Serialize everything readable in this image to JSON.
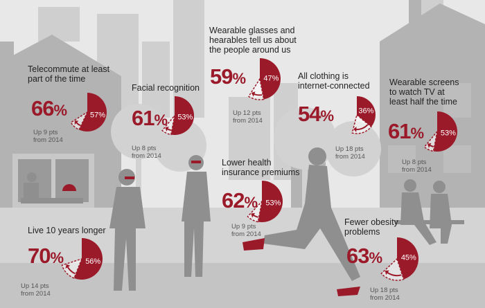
{
  "colors": {
    "accent": "#9b1a2a",
    "text": "#222222",
    "silhouette": "#8f8f8f",
    "background": "#e6e6e6"
  },
  "chart_data": [
    {
      "type": "pie",
      "title": "Telecommute at least part of the time",
      "big_percent": "66",
      "inner_percent": "57%",
      "change": "Up 9 pts",
      "since": "from 2014",
      "previous": 57,
      "current": 66
    },
    {
      "type": "pie",
      "title": "Facial recognition",
      "big_percent": "61",
      "inner_percent": "53%",
      "change": "Up 8 pts",
      "since": "from 2014",
      "previous": 53,
      "current": 61
    },
    {
      "type": "pie",
      "title": "Wearable glasses and hearables tell us about the people around us",
      "big_percent": "59",
      "inner_percent": "47%",
      "change": "Up 12 pts",
      "since": "from 2014",
      "previous": 47,
      "current": 59
    },
    {
      "type": "pie",
      "title": "All clothing is internet-connected",
      "big_percent": "54",
      "inner_percent": "36%",
      "change": "Up 18 pts",
      "since": "from 2014",
      "previous": 36,
      "current": 54
    },
    {
      "type": "pie",
      "title": "Wearable screens to watch TV at least half the time",
      "big_percent": "61",
      "inner_percent": "53%",
      "change": "Up 8 pts",
      "since": "from 2014",
      "previous": 53,
      "current": 61
    },
    {
      "type": "pie",
      "title": "Lower health insurance premiums",
      "big_percent": "62",
      "inner_percent": "53%",
      "change": "Up 9 pts",
      "since": "from 2014",
      "previous": 53,
      "current": 62
    },
    {
      "type": "pie",
      "title": "Live 10 years longer",
      "big_percent": "70",
      "inner_percent": "56%",
      "change": "Up 14 pts",
      "since": "from 2014",
      "previous": 56,
      "current": 70
    },
    {
      "type": "pie",
      "title": "Fewer obesity problems",
      "big_percent": "63",
      "inner_percent": "45%",
      "change": "Up 18 pts",
      "since": "from 2014",
      "previous": 45,
      "current": 63
    }
  ]
}
